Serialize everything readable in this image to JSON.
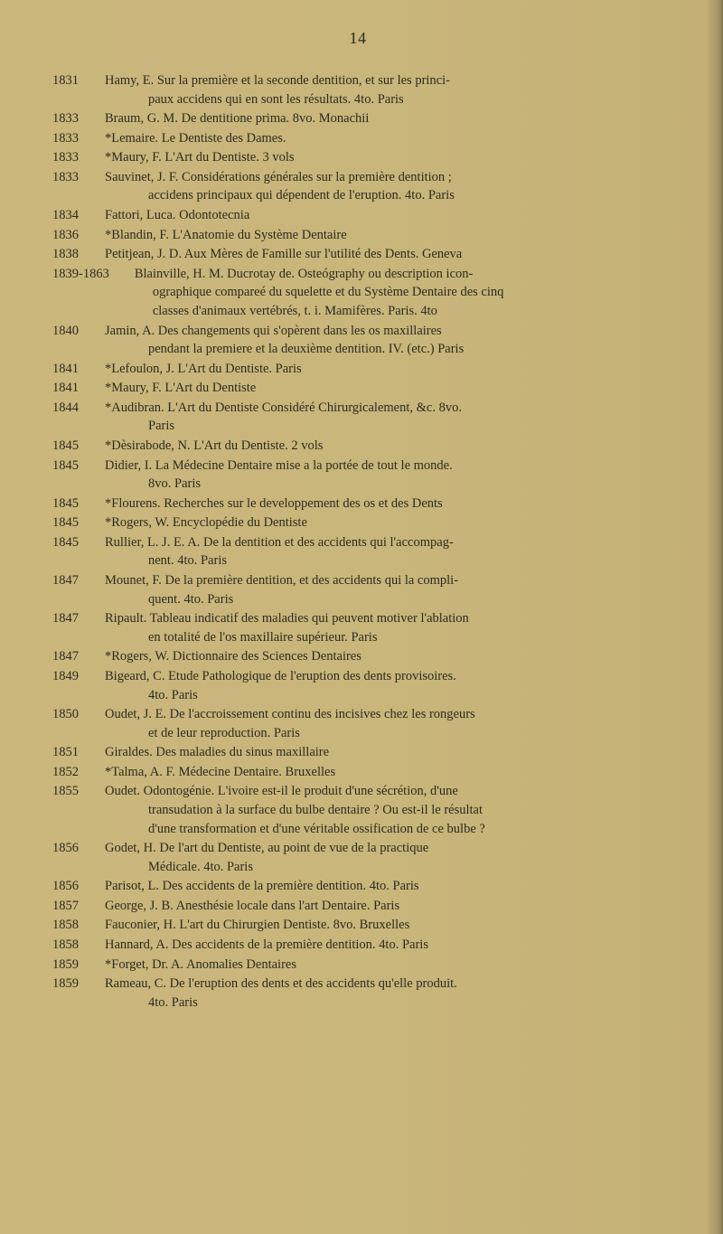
{
  "page_number": "14",
  "typography": {
    "body_fontsize": 14.5,
    "pagenum_fontsize": 18,
    "line_height": 1.42
  },
  "colors": {
    "paper": "#c8b67a",
    "ink": "#2b2b20"
  },
  "entries": [
    {
      "year": "1831",
      "lines": [
        "Hamy, E.  Sur la première et la seconde dentition, et sur les princi-",
        "paux accidens qui en sont les résultats.  4to.  Paris"
      ]
    },
    {
      "year": "1833",
      "lines": [
        "Braum, G. M.  De dentitione prima.  8vo.  Monachii"
      ]
    },
    {
      "year": "1833",
      "lines": [
        "*Lemaire.  Le Dentiste des Dames."
      ]
    },
    {
      "year": "1833",
      "lines": [
        "*Maury, F.  L'Art du Dentiste.  3 vols"
      ]
    },
    {
      "year": "1833",
      "lines": [
        "Sauvinet, J. F.  Considérations générales sur la première dentition ;",
        "accidens principaux qui dépendent de l'eruption.  4to.  Paris"
      ]
    },
    {
      "year": "1834",
      "lines": [
        "Fattori, Luca.  Odontotecnia"
      ]
    },
    {
      "year": "1836",
      "lines": [
        "*Blandin, F.  L'Anatomie du Système Dentaire"
      ]
    },
    {
      "year": "1838",
      "lines": [
        "Petitjean, J. D.  Aux Mères de Famille sur l'utilité des Dents.  Geneva"
      ]
    },
    {
      "year": "1839-1863",
      "lines": [
        "Blainville, H. M. Ducrotay de.  Osteógraphy ou description icon-",
        "ographique compareé du squelette et du Système Dentaire des cinq",
        "classes d'animaux vertébrés, t. i. Mamifères.  Paris.  4to"
      ],
      "wide": true
    },
    {
      "year": "1840",
      "lines": [
        "Jamin, A.  Des changements qui s'opèrent dans les os maxillaires",
        "pendant la premiere et la deuxième dentition.  IV. (etc.)  Paris"
      ]
    },
    {
      "year": "1841",
      "lines": [
        "*Lefoulon, J.  L'Art du Dentiste.  Paris"
      ]
    },
    {
      "year": "1841",
      "lines": [
        "*Maury, F.  L'Art du Dentiste"
      ]
    },
    {
      "year": "1844",
      "lines": [
        "*Audibran.  L'Art du Dentiste Considéré Chirurgicalement, &c.  8vo.",
        "Paris"
      ]
    },
    {
      "year": "1845",
      "lines": [
        "*Dèsirabode, N.  L'Art du Dentiste.  2 vols"
      ]
    },
    {
      "year": "1845",
      "lines": [
        "Didier, I.  La Médecine Dentaire mise a la portée de tout le monde.",
        "8vo.  Paris"
      ]
    },
    {
      "year": "1845",
      "lines": [
        "*Flourens.  Recherches sur le developpement des os et des Dents"
      ]
    },
    {
      "year": "1845",
      "lines": [
        "*Rogers, W.  Encyclopédie du Dentiste"
      ]
    },
    {
      "year": "1845",
      "lines": [
        "Rullier, L. J. E. A.  De la dentition et des accidents qui l'accompag-",
        "nent.  4to.  Paris"
      ]
    },
    {
      "year": "1847",
      "lines": [
        "Mounet, F.  De la première dentition, et des accidents qui la compli-",
        "quent.  4to.  Paris"
      ]
    },
    {
      "year": "1847",
      "lines": [
        "Ripault.  Tableau indicatif des maladies qui peuvent motiver l'ablation",
        "en totalité de l'os maxillaire supérieur.  Paris"
      ]
    },
    {
      "year": "1847",
      "lines": [
        "*Rogers, W.  Dictionnaire des Sciences Dentaires"
      ]
    },
    {
      "year": "1849",
      "lines": [
        "Bigeard, C.  Etude Pathologique de l'eruption des dents provisoires.",
        "4to.  Paris"
      ]
    },
    {
      "year": "1850",
      "lines": [
        "Oudet, J. E.  De l'accroissement continu des incisives chez les rongeurs",
        "et de leur reproduction.  Paris"
      ]
    },
    {
      "year": "1851",
      "lines": [
        "Giraldes.  Des maladies du sinus maxillaire"
      ]
    },
    {
      "year": "1852",
      "lines": [
        "*Talma, A. F.  Médecine Dentaire.  Bruxelles"
      ]
    },
    {
      "year": "1855",
      "lines": [
        "Oudet.  Odontogénie.  L'ivoire est-il le produit d'une sécrétion, d'une",
        "transudation à la surface du bulbe dentaire ?  Ou est-il le résultat",
        "d'une transformation et d'une véritable ossification de ce bulbe ?"
      ]
    },
    {
      "year": "1856",
      "lines": [
        "Godet, H.  De l'art du Dentiste, au point de vue de la practique",
        "Médicale.  4to.  Paris"
      ]
    },
    {
      "year": "1856",
      "lines": [
        "Parisot, L.  Des accidents de la première dentition.  4to.  Paris"
      ]
    },
    {
      "year": "1857",
      "lines": [
        "George, J. B.  Anesthésie locale dans l'art Dentaire.  Paris"
      ]
    },
    {
      "year": "1858",
      "lines": [
        "Fauconier, H.  L'art du Chirurgien Dentiste.  8vo.  Bruxelles"
      ]
    },
    {
      "year": "1858",
      "lines": [
        "Hannard, A.  Des accidents de la première dentition.  4to.  Paris"
      ]
    },
    {
      "year": "1859",
      "lines": [
        "*Forget, Dr. A.  Anomalies Dentaires"
      ]
    },
    {
      "year": "1859",
      "lines": [
        "Rameau, C.  De l'eruption des dents et des accidents qu'elle produit.",
        "4to.  Paris"
      ]
    }
  ]
}
